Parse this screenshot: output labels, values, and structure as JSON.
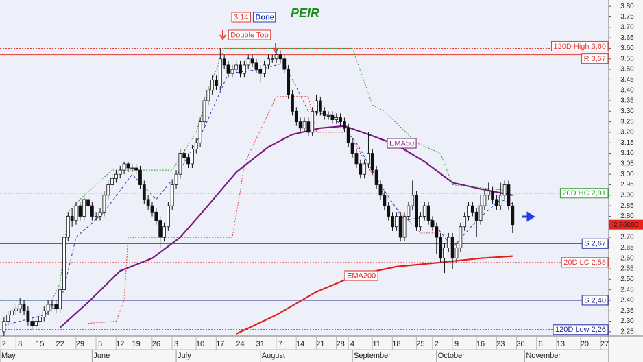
{
  "chart_data": {
    "type": "candlestick",
    "title": "PEIR",
    "badges": [
      {
        "text": "3,14",
        "color": "#e53935"
      },
      {
        "text": "Done",
        "color": "#1f3fc4"
      }
    ],
    "annotation": "Double Top",
    "xlim": [
      -1,
      151
    ],
    "ylim": [
      2.23,
      3.83
    ],
    "xticks": [
      {
        "value": 0,
        "label": "2"
      },
      {
        "value": 4,
        "label": "8"
      },
      {
        "value": 9,
        "label": "15"
      },
      {
        "value": 14,
        "label": "22"
      },
      {
        "value": 19,
        "label": "29"
      },
      {
        "value": 24,
        "label": "5"
      },
      {
        "value": 29,
        "label": "12"
      },
      {
        "value": 33,
        "label": "19"
      },
      {
        "value": 38,
        "label": "26"
      },
      {
        "value": 43,
        "label": "3"
      },
      {
        "value": 49,
        "label": "10"
      },
      {
        "value": 54,
        "label": "17"
      },
      {
        "value": 59,
        "label": "24"
      },
      {
        "value": 64,
        "label": "31"
      },
      {
        "value": 69,
        "label": "7"
      },
      {
        "value": 74,
        "label": "14"
      },
      {
        "value": 79,
        "label": "21"
      },
      {
        "value": 84,
        "label": "28"
      },
      {
        "value": 87,
        "label": "4"
      },
      {
        "value": 93,
        "label": "11"
      },
      {
        "value": 98,
        "label": "18"
      },
      {
        "value": 104,
        "label": "25"
      },
      {
        "value": 108,
        "label": "2"
      },
      {
        "value": 113,
        "label": "9"
      },
      {
        "value": 119,
        "label": "16"
      },
      {
        "value": 124,
        "label": "23"
      },
      {
        "value": 129,
        "label": "30"
      },
      {
        "value": 134,
        "label": "6"
      },
      {
        "value": 139,
        "label": "13"
      },
      {
        "value": 145,
        "label": "20"
      },
      {
        "value": 150,
        "label": "27"
      }
    ],
    "month_ticks": [
      {
        "value": -1,
        "label": "May"
      },
      {
        "value": 22,
        "label": "June"
      },
      {
        "value": 43,
        "label": "July"
      },
      {
        "value": 64,
        "label": "August"
      },
      {
        "value": 87,
        "label": "September"
      },
      {
        "value": 108,
        "label": "October"
      },
      {
        "value": 130,
        "label": "November"
      }
    ],
    "yticks": [
      {
        "value": 3.8,
        "label": "3.80"
      },
      3.75,
      {
        "value": 3.7,
        "label": "3.70"
      },
      3.65,
      {
        "value": 3.6,
        "label": "3.60"
      },
      3.55,
      {
        "value": 3.5,
        "label": "3.50"
      },
      3.45,
      {
        "value": 3.4,
        "label": "3.40"
      },
      3.35,
      {
        "value": 3.3,
        "label": "3.30"
      },
      3.25,
      {
        "value": 3.2,
        "label": "3.20"
      },
      3.15,
      {
        "value": 3.1,
        "label": "3.10"
      },
      3.05,
      {
        "value": 3,
        "label": "3.00"
      },
      2.95,
      {
        "value": 2.9,
        "label": "2.90"
      },
      2.85,
      {
        "value": 2.8,
        "label": "2.80"
      },
      2.75,
      {
        "value": 2.7,
        "label": "2.70"
      },
      2.65,
      {
        "value": 2.6,
        "label": "2.60"
      },
      2.55,
      {
        "value": 2.5,
        "label": "2.50"
      },
      2.45,
      {
        "value": 2.4,
        "label": "2.40"
      },
      2.35,
      {
        "value": 2.3,
        "label": "2.30"
      },
      2.25
    ],
    "x": [
      0,
      1,
      2,
      3,
      4,
      5,
      6,
      7,
      8,
      9,
      10,
      11,
      12,
      13,
      14,
      15,
      16,
      17,
      18,
      19,
      20,
      21,
      22,
      23,
      24,
      25,
      26,
      27,
      28,
      29,
      30,
      31,
      32,
      33,
      34,
      35,
      36,
      37,
      38,
      39,
      40,
      41,
      42,
      43,
      44,
      45,
      46,
      47,
      48,
      49,
      50,
      51,
      52,
      53,
      54,
      55,
      56,
      57,
      58,
      59,
      60,
      61,
      62,
      63,
      64,
      65,
      66,
      67,
      68,
      69,
      70,
      71,
      72,
      73,
      74,
      75,
      76,
      77,
      78,
      79,
      80,
      81,
      82,
      83,
      84,
      85,
      86,
      87,
      88,
      89,
      90,
      91,
      92,
      93,
      94,
      95,
      96,
      97,
      98,
      99,
      100,
      101,
      102,
      103,
      104,
      105,
      106,
      107,
      108,
      109,
      110,
      111,
      112,
      113,
      114,
      115,
      116,
      117,
      118,
      119,
      120,
      121,
      122,
      123,
      124,
      125,
      126,
      127
    ],
    "open": [
      2.25,
      2.3,
      2.33,
      2.35,
      2.36,
      2.38,
      2.35,
      2.3,
      2.28,
      2.3,
      2.32,
      2.35,
      2.38,
      2.38,
      2.36,
      2.45,
      2.7,
      2.8,
      2.78,
      2.85,
      2.8,
      2.88,
      2.85,
      2.8,
      2.8,
      2.82,
      2.9,
      2.95,
      2.98,
      3.0,
      3.02,
      3.05,
      3.03,
      3.03,
      3.02,
      2.95,
      2.88,
      2.85,
      2.82,
      2.78,
      2.7,
      2.75,
      2.85,
      2.95,
      3.0,
      3.1,
      3.08,
      3.05,
      3.12,
      3.15,
      3.25,
      3.35,
      3.4,
      3.45,
      3.42,
      3.55,
      3.52,
      3.48,
      3.5,
      3.52,
      3.48,
      3.52,
      3.55,
      3.53,
      3.5,
      3.48,
      3.52,
      3.55,
      3.55,
      3.57,
      3.55,
      3.5,
      3.38,
      3.3,
      3.25,
      3.22,
      3.25,
      3.2,
      3.3,
      3.35,
      3.3,
      3.28,
      3.28,
      3.26,
      3.27,
      3.25,
      3.22,
      3.15,
      3.1,
      3.05,
      3.0,
      3.05,
      3.1,
      3.02,
      2.95,
      2.9,
      2.85,
      2.8,
      2.75,
      2.8,
      2.7,
      2.8,
      2.85,
      2.9,
      2.75,
      2.8,
      2.85,
      2.78,
      2.75,
      2.7,
      2.6,
      2.65,
      2.7,
      2.6,
      2.65,
      2.75,
      2.8,
      2.85,
      2.82,
      2.78,
      2.85,
      2.9,
      2.92,
      2.88,
      2.85,
      2.9,
      2.95,
      2.85
    ],
    "high": [
      2.32,
      2.35,
      2.37,
      2.38,
      2.41,
      2.4,
      2.37,
      2.32,
      2.32,
      2.34,
      2.37,
      2.4,
      2.4,
      2.4,
      2.47,
      2.72,
      2.82,
      2.84,
      2.87,
      2.87,
      2.9,
      2.9,
      2.87,
      2.82,
      2.84,
      2.92,
      2.97,
      3.0,
      3.02,
      3.04,
      3.06,
      3.06,
      3.05,
      3.05,
      3.04,
      2.97,
      2.9,
      2.87,
      2.84,
      2.8,
      2.77,
      2.87,
      2.97,
      3.02,
      3.12,
      3.12,
      3.1,
      3.14,
      3.17,
      3.27,
      3.37,
      3.42,
      3.47,
      3.47,
      3.6,
      3.57,
      3.54,
      3.52,
      3.54,
      3.54,
      3.54,
      3.57,
      3.57,
      3.55,
      3.52,
      3.54,
      3.57,
      3.57,
      3.59,
      3.59,
      3.57,
      3.52,
      3.4,
      3.32,
      3.27,
      3.27,
      3.27,
      3.32,
      3.38,
      3.37,
      3.32,
      3.3,
      3.3,
      3.29,
      3.29,
      3.27,
      3.24,
      3.17,
      3.12,
      3.07,
      3.07,
      3.2,
      3.12,
      3.04,
      2.97,
      2.92,
      2.87,
      2.82,
      2.82,
      2.82,
      2.82,
      2.87,
      2.97,
      2.92,
      2.82,
      2.87,
      2.87,
      2.8,
      2.77,
      2.72,
      2.67,
      2.72,
      2.72,
      2.67,
      2.77,
      2.82,
      2.87,
      2.87,
      2.84,
      2.9,
      2.92,
      2.96,
      2.94,
      2.9,
      2.96,
      2.97,
      2.97,
      2.87
    ],
    "low": [
      2.23,
      2.28,
      2.31,
      2.33,
      2.34,
      2.33,
      2.28,
      2.26,
      2.26,
      2.28,
      2.3,
      2.33,
      2.36,
      2.34,
      2.34,
      2.43,
      2.68,
      2.75,
      2.76,
      2.78,
      2.78,
      2.83,
      2.78,
      2.78,
      2.78,
      2.8,
      2.88,
      2.93,
      2.96,
      2.98,
      3.0,
      3.01,
      3.01,
      3.0,
      2.93,
      2.86,
      2.83,
      2.8,
      2.76,
      2.65,
      2.68,
      2.73,
      2.83,
      2.93,
      2.98,
      3.06,
      3.03,
      3.03,
      3.1,
      3.13,
      3.23,
      3.33,
      3.38,
      3.4,
      3.4,
      3.5,
      3.46,
      3.46,
      3.48,
      3.46,
      3.46,
      3.5,
      3.51,
      3.48,
      3.44,
      3.46,
      3.5,
      3.53,
      3.53,
      3.53,
      3.48,
      3.36,
      3.28,
      3.23,
      3.2,
      3.2,
      3.18,
      3.18,
      3.28,
      3.28,
      3.26,
      3.26,
      3.24,
      3.24,
      3.23,
      3.2,
      3.13,
      3.08,
      3.03,
      2.98,
      2.98,
      3.03,
      3.0,
      2.93,
      2.88,
      2.83,
      2.78,
      2.73,
      2.73,
      2.68,
      2.68,
      2.78,
      2.83,
      2.73,
      2.73,
      2.78,
      2.76,
      2.73,
      2.62,
      2.58,
      2.53,
      2.63,
      2.55,
      2.58,
      2.63,
      2.73,
      2.78,
      2.8,
      2.7,
      2.76,
      2.83,
      2.88,
      2.86,
      2.83,
      2.83,
      2.88,
      2.83,
      2.72
    ],
    "close": [
      2.3,
      2.33,
      2.35,
      2.36,
      2.38,
      2.35,
      2.3,
      2.28,
      2.3,
      2.32,
      2.35,
      2.38,
      2.38,
      2.36,
      2.45,
      2.7,
      2.8,
      2.78,
      2.85,
      2.8,
      2.88,
      2.85,
      2.8,
      2.8,
      2.82,
      2.9,
      2.95,
      2.98,
      3.0,
      3.02,
      3.05,
      3.03,
      3.03,
      3.02,
      2.95,
      2.88,
      2.85,
      2.82,
      2.78,
      2.7,
      2.75,
      2.85,
      2.95,
      3.0,
      3.1,
      3.08,
      3.05,
      3.12,
      3.15,
      3.25,
      3.35,
      3.4,
      3.45,
      3.42,
      3.55,
      3.52,
      3.48,
      3.5,
      3.52,
      3.48,
      3.52,
      3.55,
      3.53,
      3.5,
      3.48,
      3.52,
      3.55,
      3.55,
      3.57,
      3.55,
      3.5,
      3.38,
      3.3,
      3.25,
      3.22,
      3.25,
      3.2,
      3.3,
      3.35,
      3.3,
      3.28,
      3.28,
      3.26,
      3.27,
      3.25,
      3.22,
      3.15,
      3.1,
      3.05,
      3.0,
      3.05,
      3.1,
      3.02,
      2.95,
      2.9,
      2.85,
      2.8,
      2.75,
      2.8,
      2.7,
      2.8,
      2.85,
      2.9,
      2.75,
      2.8,
      2.85,
      2.78,
      2.75,
      2.7,
      2.6,
      2.65,
      2.7,
      2.6,
      2.65,
      2.75,
      2.8,
      2.85,
      2.82,
      2.78,
      2.85,
      2.9,
      2.92,
      2.88,
      2.85,
      2.9,
      2.95,
      2.85,
      2.76
    ],
    "up_color": "#ffffff",
    "down_color": "#111111",
    "overlays": [
      {
        "name": "EMA50",
        "color": "#7a1a7e",
        "style": "solid",
        "x": [
          14,
          21,
          29,
          37,
          44,
          50,
          58,
          66,
          72,
          79,
          85,
          91,
          98,
          105,
          112,
          119,
          127
        ],
        "values": [
          2.27,
          2.39,
          2.54,
          2.6,
          2.7,
          2.83,
          3.01,
          3.13,
          3.19,
          3.22,
          3.23,
          3.19,
          3.14,
          3.06,
          2.96,
          2.93,
          2.9
        ]
      },
      {
        "name": "EMA200",
        "color": "#e0201b",
        "style": "solid",
        "x": [
          58,
          68,
          78,
          88,
          98,
          109,
          119,
          127
        ],
        "values": [
          2.24,
          2.33,
          2.44,
          2.52,
          2.56,
          2.58,
          2.6,
          2.61
        ]
      },
      {
        "color": "#2ca02c",
        "style": "dotted",
        "x": [
          0,
          12,
          14,
          16,
          20,
          27,
          42,
          48,
          52,
          55,
          87,
          92,
          95,
          103,
          109,
          112,
          127
        ],
        "values": [
          2.4,
          2.4,
          2.48,
          2.82,
          2.9,
          3.02,
          3.02,
          3.2,
          3.45,
          3.6,
          3.6,
          3.33,
          3.3,
          3.15,
          3.1,
          2.95,
          2.92
        ]
      },
      {
        "color": "#e53935",
        "style": "dotted",
        "x": [
          21,
          28,
          30,
          31,
          57,
          59,
          60,
          68,
          76,
          78,
          86,
          95,
          104,
          108,
          110,
          127
        ],
        "values": [
          2.29,
          2.3,
          2.4,
          2.7,
          2.7,
          2.92,
          3.05,
          3.37,
          3.37,
          3.2,
          3.2,
          2.9,
          2.72,
          2.72,
          2.62,
          2.62
        ]
      },
      {
        "color": "#2a3fb0",
        "style": "dashed",
        "x": [
          0,
          10,
          14,
          18,
          25,
          32,
          38,
          44,
          50,
          56,
          64,
          70,
          76,
          82,
          88,
          94,
          100,
          106,
          112,
          118,
          124,
          127
        ],
        "values": [
          2.28,
          2.33,
          2.38,
          2.7,
          2.82,
          3.0,
          2.88,
          3.02,
          3.22,
          3.48,
          3.5,
          3.53,
          3.3,
          3.28,
          3.15,
          2.95,
          2.78,
          2.8,
          2.65,
          2.78,
          2.88,
          2.86
        ]
      }
    ],
    "levels": [
      {
        "label": "120D High 3,60",
        "value": 3.6,
        "color": "#e53935",
        "style": "dotted"
      },
      {
        "label": "R 3,57",
        "value": 3.57,
        "color": "#e53935",
        "style": "solid"
      },
      {
        "label": "20D HC 2,91",
        "value": 2.91,
        "color": "#2ca02c",
        "style": "dotted"
      },
      {
        "label": "S 2,67",
        "value": 2.67,
        "color": "#1f2a9a",
        "style": "solid"
      },
      {
        "label": "20D LC 2,58",
        "value": 2.58,
        "color": "#e53935",
        "style": "dotted"
      },
      {
        "label": "S 2,40",
        "value": 2.4,
        "color": "#1f2a9a",
        "style": "solid"
      },
      {
        "label": "120D Low 2,26",
        "value": 2.26,
        "color": "#1f2a9a",
        "style": "dotted"
      }
    ],
    "current": {
      "value": 2.76,
      "label": "2.76000",
      "color": "#e8231c"
    }
  }
}
